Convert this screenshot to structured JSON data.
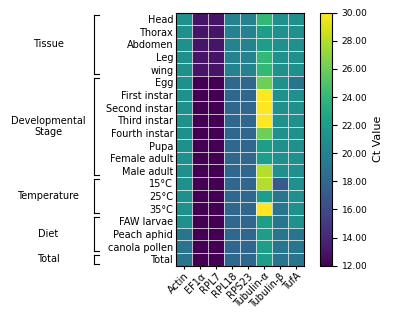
{
  "chart_data": {
    "type": "heatmap",
    "rows": [
      "Head",
      "Thorax",
      "Abdomen",
      "Leg",
      "wing",
      "Egg",
      "First instar",
      "Second instar",
      "Third instar",
      "Fourth instar",
      "Pupa",
      "Female adult",
      "Male adult",
      "15°C",
      "25°C",
      "35°C",
      "FAW larvae",
      "Peach aphid",
      "canola pollen",
      "Total"
    ],
    "categories": [
      "Actin",
      "EF1α",
      "RPL7",
      "RPL18",
      "RPS23",
      "Tubulin-α",
      "Tubulin-β",
      "TufA"
    ],
    "values": [
      [
        21,
        13,
        13,
        20,
        20,
        24,
        21,
        21
      ],
      [
        21,
        13,
        13,
        20,
        20,
        22,
        21,
        21
      ],
      [
        21,
        13,
        13,
        20,
        20,
        22,
        21,
        21
      ],
      [
        21,
        13,
        13,
        20,
        20,
        24,
        21,
        21
      ],
      [
        21,
        13,
        13,
        20,
        20,
        24,
        21,
        21
      ],
      [
        21,
        12,
        12,
        18,
        18,
        26,
        21,
        19
      ],
      [
        21,
        12,
        12,
        18,
        18,
        30,
        21,
        21
      ],
      [
        21,
        12,
        12,
        18,
        18,
        30,
        21,
        21
      ],
      [
        21,
        12,
        12,
        18,
        18,
        30,
        21,
        21
      ],
      [
        21,
        12,
        12,
        18,
        18,
        26,
        21,
        21
      ],
      [
        21,
        12,
        12,
        18,
        18,
        22,
        21,
        21
      ],
      [
        21,
        12,
        12,
        18,
        18,
        22,
        21,
        21
      ],
      [
        21,
        12,
        12,
        18,
        18,
        28,
        21,
        21
      ],
      [
        21,
        12,
        12,
        18,
        18,
        28,
        17,
        21
      ],
      [
        21,
        12,
        12,
        18,
        18,
        22,
        19,
        21
      ],
      [
        21,
        12,
        12,
        18,
        18,
        30,
        19,
        21
      ],
      [
        21,
        12,
        12,
        18,
        18,
        22,
        19,
        21
      ],
      [
        19,
        12,
        12,
        18,
        18,
        22,
        19,
        19
      ],
      [
        19,
        12,
        12,
        18,
        18,
        22,
        19,
        19
      ],
      [
        19,
        12,
        12,
        18,
        18,
        22,
        19,
        19
      ]
    ],
    "grid": true,
    "groups": [
      {
        "label": "Tissue",
        "first": "Head",
        "last": "wing"
      },
      {
        "label": "Developmental\nStage",
        "first": "Egg",
        "last": "Male adult"
      },
      {
        "label": "Temperature",
        "first": "15°C",
        "last": "35°C"
      },
      {
        "label": "Diet",
        "first": "FAW larvae",
        "last": "canola pollen"
      },
      {
        "label": "Total",
        "first": "Total",
        "last": "Total"
      }
    ],
    "colorbar_label": "Ct Value",
    "colorbar_range": [
      12.0,
      30.0
    ],
    "colorbar_ticks": [
      {
        "value": 12.0,
        "label": "12.00"
      },
      {
        "value": 14.0,
        "label": "14.00"
      },
      {
        "value": 16.0,
        "label": "16.00"
      },
      {
        "value": 18.0,
        "label": "18.00"
      },
      {
        "value": 20.0,
        "label": "20.00"
      },
      {
        "value": 22.0,
        "label": "22.00"
      },
      {
        "value": 24.0,
        "label": "24.00"
      },
      {
        "value": 26.0,
        "label": "26.00"
      },
      {
        "value": 28.0,
        "label": "28.00"
      },
      {
        "value": 30.0,
        "label": "30.00"
      }
    ]
  }
}
